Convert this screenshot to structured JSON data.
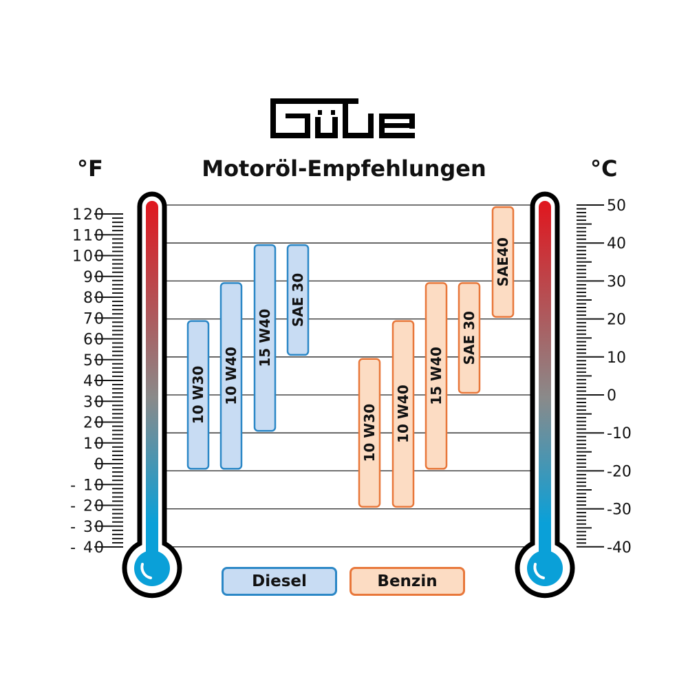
{
  "logo_text": "Güde",
  "title": "Motoröl-Empfehlungen",
  "unit_left": "°F",
  "unit_right": "°C",
  "colors": {
    "diesel_fill": "#c8dcf3",
    "diesel_stroke": "#2b87c6",
    "benzin_fill": "#fcdcc3",
    "benzin_stroke": "#e8773a",
    "thermo_hot": "#e0161e",
    "thermo_cold": "#0aa0d8"
  },
  "legend": {
    "diesel": "Diesel",
    "benzin": "Benzin"
  },
  "chart_data": {
    "type": "range-bar",
    "title": "Motoröl-Empfehlungen",
    "celsius_axis": {
      "range": [
        -40,
        50
      ],
      "ticks": [
        50,
        40,
        30,
        20,
        10,
        0,
        -10,
        -20,
        -30,
        -40
      ]
    },
    "fahrenheit_axis": {
      "range": [
        -40,
        120
      ],
      "ticks": [
        120,
        110,
        100,
        90,
        80,
        70,
        60,
        50,
        40,
        30,
        20,
        10,
        0,
        -10,
        -20,
        -30,
        -40
      ]
    },
    "grid": true,
    "series": [
      {
        "name": "Diesel",
        "bars": [
          {
            "label": "10 W30",
            "min_c": -20,
            "max_c": 20
          },
          {
            "label": "10 W40",
            "min_c": -20,
            "max_c": 30
          },
          {
            "label": "15 W40",
            "min_c": -10,
            "max_c": 40
          },
          {
            "label": "SAE 30",
            "min_c": 10,
            "max_c": 40
          }
        ]
      },
      {
        "name": "Benzin",
        "bars": [
          {
            "label": "10 W30",
            "min_c": -30,
            "max_c": 10
          },
          {
            "label": "10 W40",
            "min_c": -30,
            "max_c": 20
          },
          {
            "label": "15 W40",
            "min_c": -20,
            "max_c": 30
          },
          {
            "label": "SAE 30",
            "min_c": 0,
            "max_c": 30
          },
          {
            "label": "SAE40",
            "min_c": 20,
            "max_c": 50
          }
        ]
      }
    ]
  }
}
